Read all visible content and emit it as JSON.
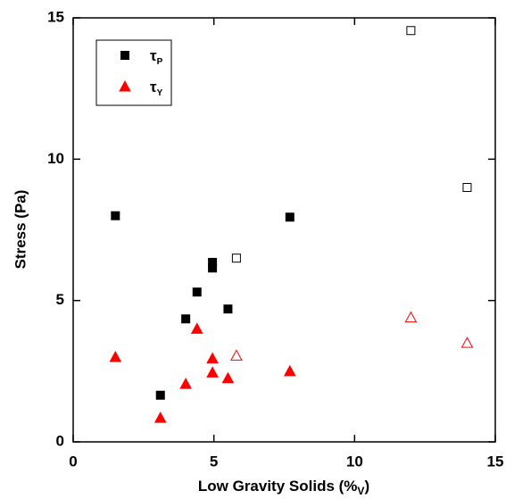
{
  "chart_data": {
    "type": "scatter",
    "xlabel": "Low Gravity Solids (%",
    "xlabel_sub": "V",
    "xlabel_end": ")",
    "ylabel": "Stress (Pa)",
    "xlim": [
      0,
      15
    ],
    "ylim": [
      0,
      15
    ],
    "xticks": [
      0,
      5,
      10,
      15
    ],
    "yticks": [
      0,
      5,
      10,
      15
    ],
    "legend": "upper left",
    "series": [
      {
        "name": "τ",
        "name_sub": "P",
        "marker": "square",
        "color": "#000000",
        "x": [
          1.5,
          3.1,
          4.0,
          4.4,
          4.95,
          4.95,
          5.5,
          7.7,
          5.8,
          12.0,
          14.0
        ],
        "values": [
          8.0,
          1.65,
          4.35,
          5.3,
          6.35,
          6.15,
          4.7,
          7.95,
          6.5,
          14.55,
          9.0
        ],
        "filled": [
          true,
          true,
          true,
          true,
          true,
          true,
          true,
          true,
          false,
          false,
          false
        ]
      },
      {
        "name": "τ",
        "name_sub": "Y",
        "marker": "triangle",
        "color": "#ff0000",
        "x": [
          1.5,
          3.1,
          4.0,
          4.4,
          4.95,
          4.95,
          5.5,
          7.7,
          5.8,
          12.0,
          14.0
        ],
        "values": [
          3.0,
          0.85,
          2.05,
          4.0,
          2.95,
          2.45,
          2.25,
          2.5,
          3.05,
          4.4,
          3.5
        ],
        "filled": [
          true,
          true,
          true,
          true,
          true,
          true,
          true,
          true,
          false,
          false,
          false
        ]
      }
    ]
  }
}
